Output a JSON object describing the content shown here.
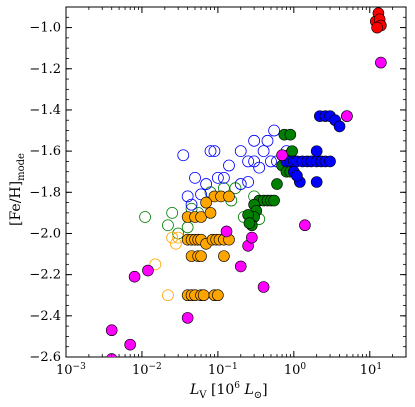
{
  "chart_data": {
    "type": "scatter",
    "title": "",
    "xlabel": {
      "main": "L",
      "sub": "V",
      "rest": " [10",
      "sup": "6",
      "rest2": " L",
      "sub2": "⊙",
      "close": "]"
    },
    "ylabel": {
      "main": "[Fe/H]",
      "sub": "mode"
    },
    "xscale": "log",
    "xlim": [
      0.001,
      30
    ],
    "ylim": [
      -2.6,
      -0.9
    ],
    "x_ticks": [
      {
        "value": 0.001,
        "base": "10",
        "exp": "−3"
      },
      {
        "value": 0.01,
        "base": "10",
        "exp": "−2"
      },
      {
        "value": 0.1,
        "base": "10",
        "exp": "−1"
      },
      {
        "value": 1,
        "base": "10",
        "exp": "0"
      },
      {
        "value": 10,
        "base": "10",
        "exp": "1"
      }
    ],
    "y_ticks": [
      {
        "value": -2.6,
        "label": "−2.6"
      },
      {
        "value": -2.4,
        "label": "−2.4"
      },
      {
        "value": -2.2,
        "label": "−2.2"
      },
      {
        "value": -2.0,
        "label": "−2.0"
      },
      {
        "value": -1.8,
        "label": "−1.8"
      },
      {
        "value": -1.6,
        "label": "−1.6"
      },
      {
        "value": -1.4,
        "label": "−1.4"
      },
      {
        "value": -1.2,
        "label": "−1.2"
      },
      {
        "value": -1.0,
        "label": "−1.0"
      }
    ],
    "grid": false,
    "colors": {
      "magenta": "#ff00ff",
      "orange": "#ffa500",
      "green": "#008000",
      "blue": "#0000ff",
      "red": "#ff0000"
    },
    "series": [
      {
        "color": "#008000",
        "filled": false,
        "points": [
          [
            0.011,
            -1.92
          ],
          [
            0.022,
            -1.96
          ],
          [
            0.025,
            -1.9
          ],
          [
            0.03,
            -2.0
          ],
          [
            0.04,
            -1.97
          ],
          [
            0.045,
            -1.88
          ],
          [
            0.055,
            -1.9
          ],
          [
            0.08,
            -1.8
          ],
          [
            0.12,
            -1.78
          ],
          [
            0.17,
            -1.78
          ],
          [
            0.15,
            -1.84
          ],
          [
            0.3,
            -1.82
          ],
          [
            0.22,
            -1.92
          ],
          [
            0.35,
            -1.93
          ]
        ]
      },
      {
        "color": "#ffa500",
        "filled": false,
        "points": [
          [
            0.015,
            -2.15
          ],
          [
            0.022,
            -2.3
          ],
          [
            0.025,
            -2.02
          ],
          [
            0.028,
            -2.05
          ],
          [
            0.03,
            -2.02
          ]
        ]
      },
      {
        "color": "#0000ff",
        "filled": false,
        "points": [
          [
            0.035,
            -1.62
          ],
          [
            0.04,
            -1.82
          ],
          [
            0.045,
            -1.86
          ],
          [
            0.05,
            -1.73
          ],
          [
            0.06,
            -1.81
          ],
          [
            0.07,
            -1.76
          ],
          [
            0.08,
            -1.6
          ],
          [
            0.09,
            -1.6
          ],
          [
            0.1,
            -1.73
          ],
          [
            0.12,
            -1.73
          ],
          [
            0.14,
            -1.67
          ],
          [
            0.2,
            -1.6
          ],
          [
            0.25,
            -1.65
          ],
          [
            0.3,
            -1.65
          ],
          [
            0.35,
            -1.68
          ],
          [
            0.4,
            -1.6
          ],
          [
            0.5,
            -1.65
          ],
          [
            0.6,
            -1.65
          ],
          [
            0.8,
            -1.6
          ],
          [
            0.45,
            -1.55
          ],
          [
            0.55,
            -1.5
          ],
          [
            0.25,
            -1.75
          ],
          [
            0.2,
            -1.76
          ],
          [
            0.3,
            -1.55
          ]
        ]
      },
      {
        "color": "#ffa500",
        "filled": true,
        "points": [
          [
            0.04,
            -1.92
          ],
          [
            0.05,
            -1.92
          ],
          [
            0.06,
            -1.92
          ],
          [
            0.09,
            -1.82
          ],
          [
            0.11,
            -1.82
          ],
          [
            0.14,
            -1.82
          ],
          [
            0.07,
            -1.85
          ],
          [
            0.08,
            -1.9
          ],
          [
            0.04,
            -2.03
          ],
          [
            0.045,
            -2.03
          ],
          [
            0.05,
            -2.03
          ],
          [
            0.055,
            -2.03
          ],
          [
            0.06,
            -2.03
          ],
          [
            0.07,
            -2.05
          ],
          [
            0.085,
            -2.03
          ],
          [
            0.095,
            -2.03
          ],
          [
            0.105,
            -2.03
          ],
          [
            0.12,
            -2.03
          ],
          [
            0.14,
            -2.03
          ],
          [
            0.045,
            -2.11
          ],
          [
            0.055,
            -2.11
          ],
          [
            0.06,
            -2.11
          ],
          [
            0.12,
            -2.11
          ],
          [
            0.04,
            -2.3
          ],
          [
            0.045,
            -2.3
          ],
          [
            0.05,
            -2.3
          ],
          [
            0.06,
            -2.3
          ],
          [
            0.065,
            -2.3
          ],
          [
            0.09,
            -2.3
          ],
          [
            0.1,
            -2.3
          ]
        ]
      },
      {
        "color": "#008000",
        "filled": true,
        "points": [
          [
            0.75,
            -1.52
          ],
          [
            0.9,
            -1.52
          ],
          [
            0.85,
            -1.62
          ],
          [
            0.95,
            -1.6
          ],
          [
            0.7,
            -1.67
          ],
          [
            0.8,
            -1.7
          ],
          [
            0.9,
            -1.7
          ],
          [
            0.6,
            -1.76
          ],
          [
            0.35,
            -1.84
          ],
          [
            0.4,
            -1.84
          ],
          [
            0.45,
            -1.84
          ],
          [
            0.5,
            -1.84
          ],
          [
            0.55,
            -1.84
          ],
          [
            0.3,
            -1.86
          ],
          [
            0.32,
            -1.89
          ],
          [
            0.3,
            -1.92
          ],
          [
            0.28,
            -1.96
          ],
          [
            0.25,
            -1.91
          ],
          [
            0.26,
            -1.95
          ]
        ]
      },
      {
        "color": "#0000ff",
        "filled": true,
        "points": [
          [
            0.8,
            -1.65
          ],
          [
            0.9,
            -1.65
          ],
          [
            1.0,
            -1.65
          ],
          [
            1.1,
            -1.65
          ],
          [
            1.3,
            -1.65
          ],
          [
            1.5,
            -1.65
          ],
          [
            1.7,
            -1.65
          ],
          [
            2.0,
            -1.65
          ],
          [
            2.3,
            -1.65
          ],
          [
            2.6,
            -1.65
          ],
          [
            3.0,
            -1.65
          ],
          [
            2.2,
            -1.43
          ],
          [
            2.6,
            -1.43
          ],
          [
            3.0,
            -1.43
          ],
          [
            3.5,
            -1.45
          ],
          [
            4.0,
            -1.48
          ],
          [
            5.0,
            -1.43
          ],
          [
            1.2,
            -1.75
          ],
          [
            2.0,
            -1.75
          ],
          [
            2.0,
            -1.6
          ],
          [
            1.0,
            -1.7
          ],
          [
            1.1,
            -1.72
          ]
        ]
      },
      {
        "color": "#ff0000",
        "filled": true,
        "points": [
          [
            12.0,
            -0.97
          ],
          [
            13.0,
            -0.93
          ],
          [
            13.5,
            -0.96
          ],
          [
            14.0,
            -0.99
          ],
          [
            12.5,
            -1.0
          ]
        ]
      },
      {
        "color": "#ff00ff",
        "filled": true,
        "points": [
          [
            0.004,
            -2.61
          ],
          [
            0.004,
            -2.47
          ],
          [
            0.007,
            -2.54
          ],
          [
            0.008,
            -2.21
          ],
          [
            0.012,
            -2.18
          ],
          [
            0.04,
            -2.41
          ],
          [
            0.13,
            -1.99
          ],
          [
            0.2,
            -2.16
          ],
          [
            0.25,
            -2.06
          ],
          [
            0.28,
            -2.02
          ],
          [
            0.4,
            -2.26
          ],
          [
            0.7,
            -1.62
          ],
          [
            1.4,
            -1.96
          ],
          [
            5.0,
            -1.43
          ],
          [
            14.0,
            -1.17
          ]
        ]
      }
    ]
  }
}
